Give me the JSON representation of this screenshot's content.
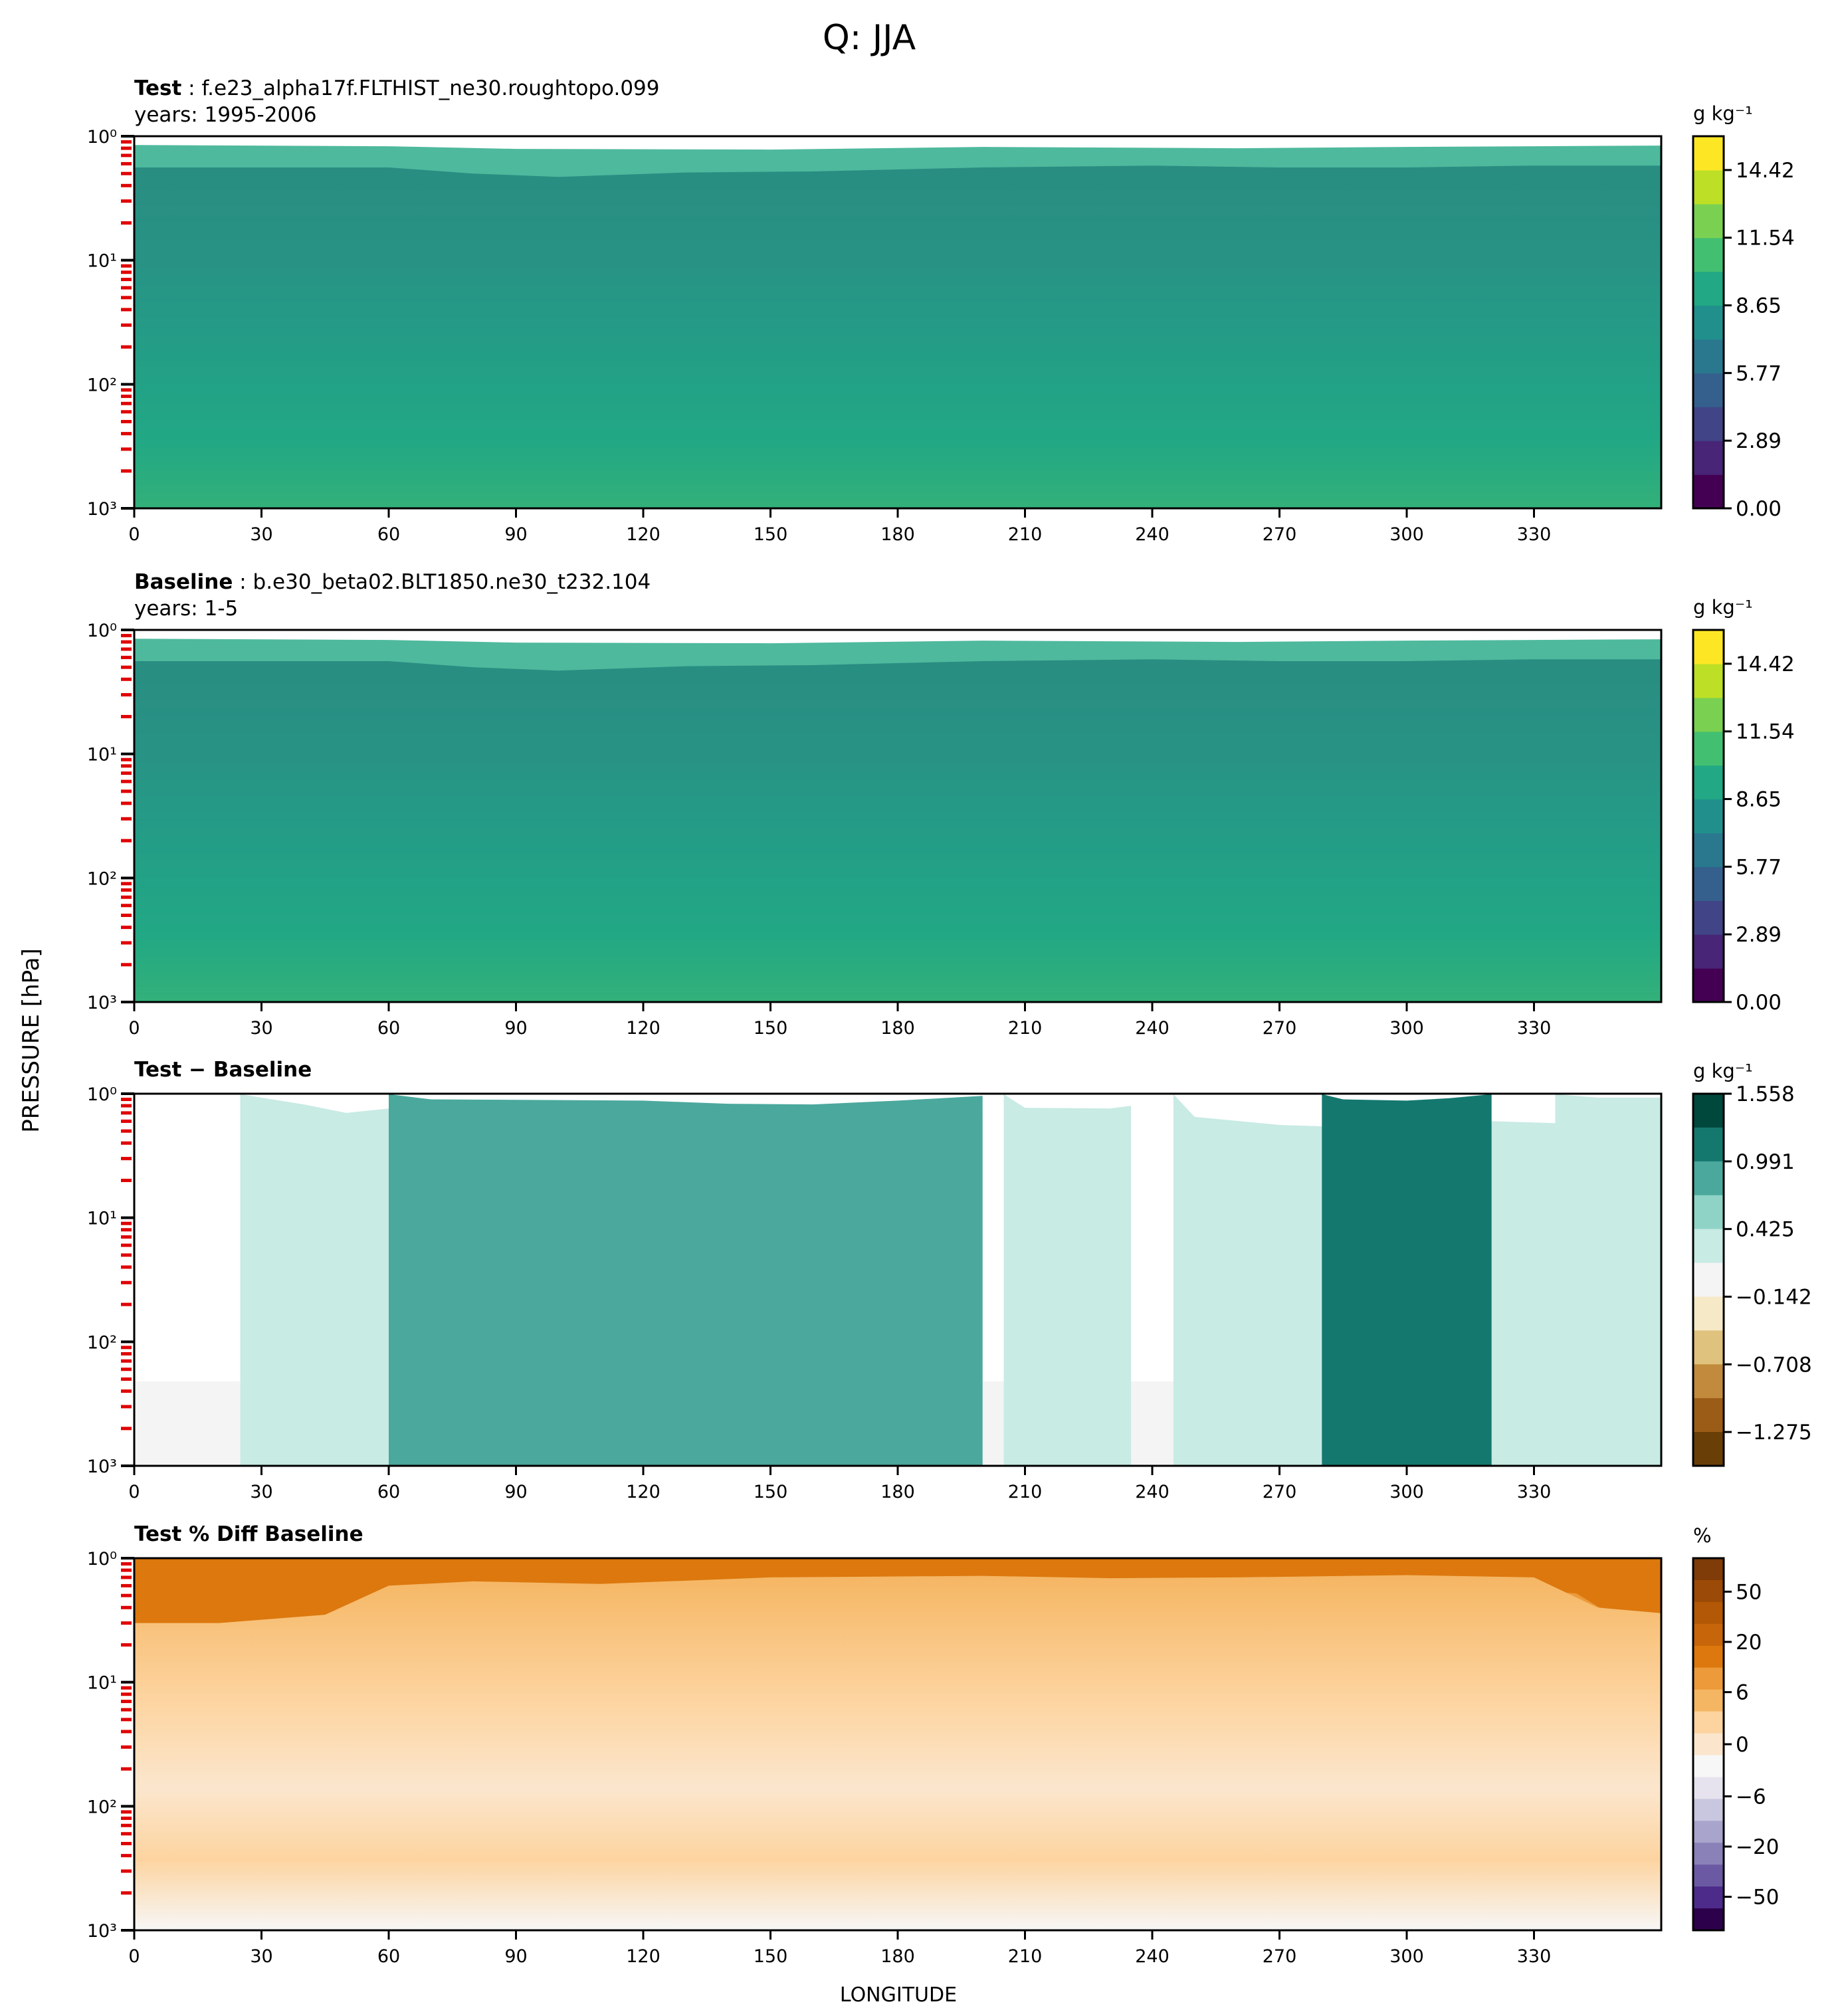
{
  "figure": {
    "title": "Q: JJA",
    "ylabel": "PRESSURE [hPa]",
    "xlabel": "LONGITUDE"
  },
  "chart_data": [
    {
      "type": "heatmap",
      "title_bold": "Test",
      "title_rest": " : f.e23_alpha17f.FLTHIST_ne30.roughtopo.099",
      "subtitle": "years: 1995-2006",
      "units": "g kg⁻¹",
      "x_ticks": [
        "0",
        "30",
        "60",
        "90",
        "120",
        "150",
        "180",
        "210",
        "240",
        "270",
        "300",
        "330"
      ],
      "y_ticks": [
        "10⁰",
        "10¹",
        "10²",
        "10³"
      ],
      "ylim": [
        1000,
        1
      ],
      "y_scale": "log",
      "colorbar_ticks": [
        "0.00",
        "2.89",
        "5.77",
        "8.65",
        "11.54",
        "14.42"
      ],
      "colors": [
        "#440154",
        "#482576",
        "#414487",
        "#35608d",
        "#2a788e",
        "#21908d",
        "#22a884",
        "#43bf71",
        "#7ad151",
        "#bddf26",
        "#fde725"
      ]
    },
    {
      "type": "heatmap",
      "title_bold": "Baseline",
      "title_rest": " : b.e30_beta02.BLT1850.ne30_t232.104",
      "subtitle": "years: 1-5",
      "units": "g kg⁻¹",
      "x_ticks": [
        "0",
        "30",
        "60",
        "90",
        "120",
        "150",
        "180",
        "210",
        "240",
        "270",
        "300",
        "330"
      ],
      "y_ticks": [
        "10⁰",
        "10¹",
        "10²",
        "10³"
      ],
      "ylim": [
        1000,
        1
      ],
      "y_scale": "log",
      "colorbar_ticks": [
        "0.00",
        "2.89",
        "5.77",
        "8.65",
        "11.54",
        "14.42"
      ],
      "colors": [
        "#440154",
        "#482576",
        "#414487",
        "#35608d",
        "#2a788e",
        "#21908d",
        "#22a884",
        "#43bf71",
        "#7ad151",
        "#bddf26",
        "#fde725"
      ]
    },
    {
      "type": "heatmap",
      "title_bold": "Test − Baseline",
      "title_rest": "",
      "subtitle": "",
      "units": "g kg⁻¹",
      "x_ticks": [
        "0",
        "30",
        "60",
        "90",
        "120",
        "150",
        "180",
        "210",
        "240",
        "270",
        "300",
        "330"
      ],
      "y_ticks": [
        "10⁰",
        "10¹",
        "10²",
        "10³"
      ],
      "ylim": [
        1000,
        1
      ],
      "y_scale": "log",
      "colorbar_ticks": [
        "1.558",
        "0.991",
        "0.425",
        "−0.142",
        "−0.708",
        "−1.275"
      ],
      "colors": [
        "#00473c",
        "#14786f",
        "#4ba89d",
        "#8fd3c7",
        "#c8ebe4",
        "#f4f4f4",
        "#f6e9c7",
        "#dfc27d",
        "#c28a3c",
        "#9b5c18",
        "#6a3e07"
      ]
    },
    {
      "type": "heatmap",
      "title_bold": "Test % Diff Baseline",
      "title_rest": "",
      "subtitle": "",
      "units": "%",
      "x_ticks": [
        "0",
        "30",
        "60",
        "90",
        "120",
        "150",
        "180",
        "210",
        "240",
        "270",
        "300",
        "330"
      ],
      "y_ticks": [
        "10⁰",
        "10¹",
        "10²",
        "10³"
      ],
      "ylim": [
        1000,
        1
      ],
      "y_scale": "log",
      "colorbar_ticks": [
        "50",
        "20",
        "6",
        "0",
        "−6",
        "−20",
        "−50"
      ],
      "colors": [
        "#7f3b08",
        "#9c4a07",
        "#b35806",
        "#c66509",
        "#dc780e",
        "#ec9a3a",
        "#f5b663",
        "#fdd4a0",
        "#fbe6cd",
        "#f7f7f7",
        "#e6e3ef",
        "#c9c6e0",
        "#a9a4cc",
        "#8a81b8",
        "#6b5aa3",
        "#4d2b8a",
        "#2d004b"
      ]
    }
  ]
}
